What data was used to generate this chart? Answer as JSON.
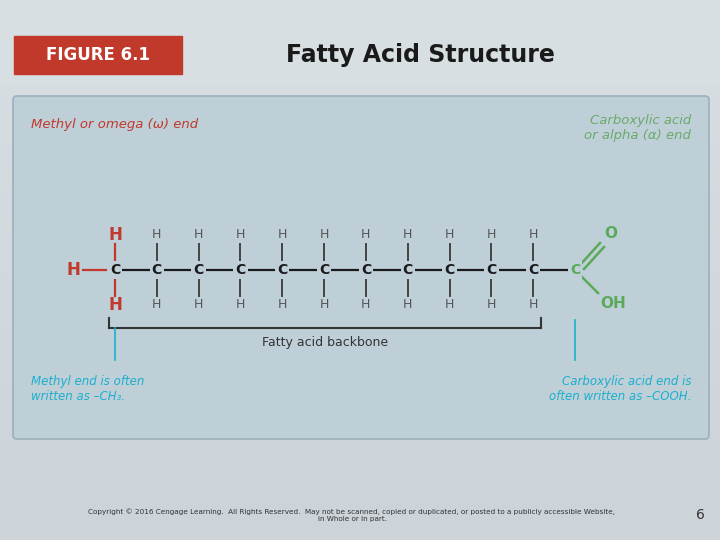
{
  "title": "Fatty Acid Structure",
  "figure_label": "FIGURE 6.1",
  "figure_label_bg": "#c0392b",
  "figure_label_color": "#ffffff",
  "title_color": "#1a1a1a",
  "bg_color": "#d4dce0",
  "header_bg": "#cdd6da",
  "box_bg": "#bfcfd8",
  "box_border": "#9ab0bc",
  "methyl_label_color": "#c0392b",
  "carboxyl_label_color": "#6aaa6a",
  "annotation_color": "#1ab0cc",
  "H_red_color": "#c0392b",
  "H_gray_color": "#555555",
  "C_color": "#1a1a1a",
  "carboxyl_C_color": "#5aaa5a",
  "bond_color": "#1a1a1a",
  "bracket_color": "#333333",
  "copyright_text": "Copyright © 2016 Cengage Learning.  All Rights Reserved.  May not be scanned, copied or duplicated, or posted to a publicly accessible Website,\nin Whole or in part.",
  "page_number": "6",
  "n_carbons": 12,
  "methyl_label": "Methyl or omega (ω) end",
  "carboxyl_label": "Carboxylic acid\nor alpha (α) end",
  "backbone_label": "Fatty acid backbone",
  "methyl_note": "Methyl end is often\nwritten as –CH₃.",
  "carboxyl_note": "Carboxylic acid end is\noften written as –COOH."
}
